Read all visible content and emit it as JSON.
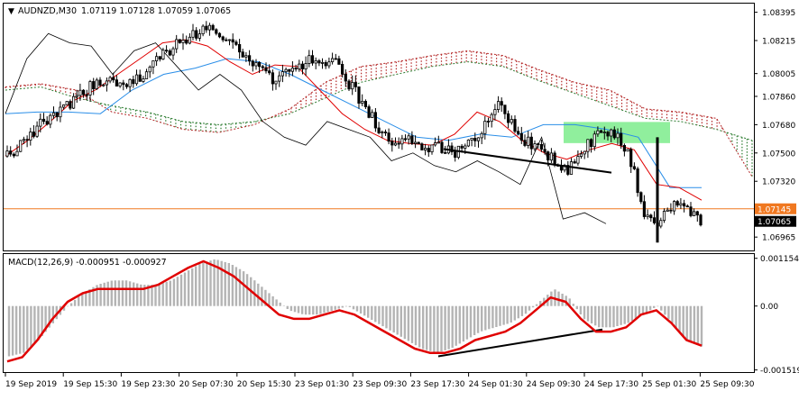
{
  "chart_data": [
    {
      "type": "candlestick",
      "title": "AUDNZD,M30",
      "ohlc_readout": "1.07119 1.07128 1.07059 1.07065",
      "y_ticks": [
        "1.08395",
        "1.08215",
        "1.08005",
        "1.07860",
        "1.07680",
        "1.07500",
        "1.07320",
        "1.06965"
      ],
      "ylim": [
        1.0688,
        1.0845
      ],
      "price_labels": [
        {
          "text": "1.07145",
          "value": 1.07145,
          "color": "#f07820"
        },
        {
          "text": "1.07065",
          "value": 1.07065,
          "color": "#000000"
        }
      ],
      "close_path": [
        1.0748,
        1.0753,
        1.076,
        1.0768,
        1.0772,
        1.0778,
        1.0783,
        1.079,
        1.0795,
        1.0798,
        1.0795,
        1.0793,
        1.08,
        1.0805,
        1.0812,
        1.0818,
        1.0822,
        1.0826,
        1.083,
        1.0826,
        1.082,
        1.0815,
        1.0808,
        1.08,
        1.0795,
        1.08,
        1.0806,
        1.0808,
        1.0806,
        1.0812,
        1.08,
        1.079,
        1.078,
        1.0768,
        1.0758,
        1.0756,
        1.0758,
        1.0755,
        1.0753,
        1.0754,
        1.075,
        1.0756,
        1.076,
        1.0772,
        1.0785,
        1.077,
        1.076,
        1.0755,
        1.0748,
        1.0745,
        1.0738,
        1.0748,
        1.0756,
        1.0762,
        1.0762,
        1.0756,
        1.074,
        1.0708,
        1.0703,
        1.0712,
        1.0718,
        1.0714,
        1.0706
      ],
      "ichimoku": {
        "senkou_a": [
          1.079,
          1.0792,
          1.0785,
          1.078,
          1.0776,
          1.077,
          1.0768,
          1.077,
          1.0775,
          1.0785,
          1.0795,
          1.08,
          1.0805,
          1.0808,
          1.0805,
          1.0796,
          1.0788,
          1.078,
          1.0772,
          1.077,
          1.0765,
          1.0758
        ],
        "senkou_b": [
          1.0792,
          1.0794,
          1.079,
          1.0776,
          1.0772,
          1.0765,
          1.0763,
          1.0768,
          1.0778,
          1.0795,
          1.0805,
          1.0808,
          1.0812,
          1.0815,
          1.0812,
          1.0803,
          1.0795,
          1.079,
          1.0778,
          1.0776,
          1.0772,
          1.0735
        ],
        "tenkan": [
          1.0748,
          1.0758,
          1.077,
          1.0783,
          1.079,
          1.08,
          1.081,
          1.082,
          1.0822,
          1.0818,
          1.0808,
          1.08,
          1.0806,
          1.0805,
          1.079,
          1.0775,
          1.0765,
          1.0758,
          1.0756,
          1.0755,
          1.0762,
          1.0776,
          1.077,
          1.0758,
          1.075,
          1.0746,
          1.0752,
          1.0756,
          1.0752,
          1.073,
          1.0728,
          1.072
        ],
        "kijun": [
          1.0775,
          1.0776,
          1.0776,
          1.0775,
          1.079,
          1.08,
          1.0804,
          1.081,
          1.0808,
          1.08,
          1.079,
          1.078,
          1.077,
          1.076,
          1.0758,
          1.0762,
          1.076,
          1.0768,
          1.0768,
          1.0765,
          1.076,
          1.0728,
          1.0728
        ],
        "chikou": [
          1.0775,
          1.081,
          1.0826,
          1.082,
          1.0818,
          1.08,
          1.0815,
          1.082,
          1.0805,
          1.079,
          1.08,
          1.079,
          1.077,
          1.076,
          1.0755,
          1.077,
          1.0765,
          1.076,
          1.0745,
          1.075,
          1.0742,
          1.0738,
          1.0745,
          1.0738,
          1.073,
          1.076,
          1.0708,
          1.0712,
          1.0705
        ]
      },
      "support_zone": {
        "top": 1.0768,
        "bottom": 1.0762
      }
    },
    {
      "type": "histogram+line",
      "title": "MACD(12,26,9) -0.000951 -0.000927",
      "y_ticks": [
        "0.001154",
        "0.00",
        "-0.001519"
      ],
      "ylim": [
        -0.00155,
        0.00122
      ],
      "histogram": [
        -0.00118,
        -0.0011,
        -0.0008,
        -0.0004,
        0.0,
        0.0003,
        0.0005,
        0.0006,
        0.0006,
        0.0005,
        0.0005,
        0.0006,
        0.0008,
        0.001,
        0.0011,
        0.001,
        0.0008,
        0.0005,
        0.0002,
        -0.0001,
        -0.0002,
        -0.0002,
        -0.0001,
        0.0,
        -0.0002,
        -0.0004,
        -0.0006,
        -0.0008,
        -0.001,
        -0.0011,
        -0.001,
        -0.0008,
        -0.0006,
        -0.0005,
        -0.0004,
        -0.0002,
        0.0001,
        0.0004,
        0.0002,
        -0.0003,
        -0.0005,
        -0.0005,
        -0.0004,
        -0.0002,
        0.0,
        -0.0004,
        -0.0008,
        -0.00095
      ],
      "signal": [
        -0.0013,
        -0.0012,
        -0.0008,
        -0.0003,
        0.0001,
        0.0003,
        0.0004,
        0.0004,
        0.0004,
        0.0004,
        0.0005,
        0.0007,
        0.0009,
        0.00105,
        0.0009,
        0.0007,
        0.0004,
        0.0001,
        -0.0002,
        -0.0003,
        -0.0003,
        -0.0002,
        -0.0001,
        -0.0002,
        -0.0004,
        -0.0006,
        -0.0008,
        -0.001,
        -0.0011,
        -0.0011,
        -0.001,
        -0.0008,
        -0.0007,
        -0.0006,
        -0.0004,
        -0.0001,
        0.0002,
        0.0001,
        -0.0003,
        -0.0006,
        -0.0006,
        -0.0005,
        -0.0002,
        -0.0001,
        -0.0004,
        -0.0008,
        -0.00093
      ]
    }
  ],
  "x_ticks": [
    "19 Sep 2019",
    "19 Sep 15:30",
    "19 Sep 23:30",
    "20 Sep 07:30",
    "20 Sep 15:30",
    "23 Sep 01:30",
    "23 Sep 09:30",
    "23 Sep 17:30",
    "24 Sep 01:30",
    "24 Sep 09:30",
    "24 Sep 17:30",
    "25 Sep 01:30",
    "25 Sep 09:30"
  ],
  "colors": {
    "candle": "#000000",
    "tenkan": "#e00000",
    "kijun": "#2a8ee8",
    "chikou": "#000000",
    "cloud_bull": "#2e7d32",
    "cloud_bear": "#b42828",
    "zone": "#7cec8c",
    "hline": "#f07820",
    "macd_hist": "#b4b4b4",
    "macd_signal": "#e00000",
    "trendline": "#000000"
  }
}
